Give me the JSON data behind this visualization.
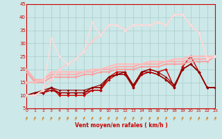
{
  "xlabel": "Vent moyen/en rafales ( km/h )",
  "xlim": [
    0,
    23
  ],
  "ylim": [
    5,
    45
  ],
  "yticks": [
    5,
    10,
    15,
    20,
    25,
    30,
    35,
    40,
    45
  ],
  "xticks": [
    0,
    1,
    2,
    3,
    4,
    5,
    6,
    7,
    8,
    9,
    10,
    11,
    12,
    13,
    14,
    15,
    16,
    17,
    18,
    19,
    20,
    21,
    22,
    23
  ],
  "bg_color": "#cce8e8",
  "grid_color": "#aacccc",
  "series": [
    {
      "x": [
        0,
        1,
        2,
        3,
        4,
        5,
        6,
        7,
        8,
        9,
        10,
        11,
        12,
        13,
        14,
        15,
        16,
        17,
        18,
        19,
        20,
        21,
        22,
        23
      ],
      "y": [
        10,
        11,
        11,
        13,
        10,
        10,
        10,
        10,
        12,
        12,
        17,
        19,
        19,
        13,
        19,
        20,
        19,
        20,
        13,
        21,
        25,
        19,
        13,
        13
      ],
      "color": "#cc0000",
      "lw": 1.0,
      "marker": "D",
      "ms": 2.0
    },
    {
      "x": [
        0,
        1,
        2,
        3,
        4,
        5,
        6,
        7,
        8,
        9,
        10,
        11,
        12,
        13,
        14,
        15,
        16,
        17,
        18,
        19,
        20,
        21,
        22,
        23
      ],
      "y": [
        10,
        11,
        11,
        12,
        11,
        11,
        11,
        11,
        12,
        12,
        16,
        18,
        18,
        14,
        18,
        19,
        18,
        16,
        14,
        20,
        22,
        19,
        13,
        13
      ],
      "color": "#bb0000",
      "lw": 0.9,
      "marker": "D",
      "ms": 1.8
    },
    {
      "x": [
        0,
        1,
        2,
        3,
        4,
        5,
        6,
        7,
        8,
        9,
        10,
        11,
        12,
        13,
        14,
        15,
        16,
        17,
        18,
        19,
        20,
        21,
        22,
        23
      ],
      "y": [
        10,
        11,
        11,
        12,
        11,
        11,
        11,
        11,
        13,
        13,
        17,
        18,
        18,
        13,
        18,
        19,
        18,
        16,
        13,
        20,
        22,
        19,
        13,
        13
      ],
      "color": "#aa0000",
      "lw": 0.9,
      "marker": "D",
      "ms": 1.8
    },
    {
      "x": [
        0,
        1,
        2,
        3,
        4,
        5,
        6,
        7,
        8,
        9,
        10,
        11,
        12,
        13,
        14,
        15,
        16,
        17,
        18,
        19,
        20,
        21,
        22,
        23
      ],
      "y": [
        10,
        11,
        11,
        13,
        11,
        11,
        11,
        11,
        13,
        13,
        17,
        18,
        19,
        13,
        19,
        19,
        18,
        16,
        13,
        20,
        22,
        19,
        13,
        13
      ],
      "color": "#990000",
      "lw": 0.8,
      "marker": "D",
      "ms": 1.5
    },
    {
      "x": [
        0,
        1,
        2,
        3,
        4,
        5,
        6,
        7,
        8,
        9,
        10,
        11,
        12,
        13,
        14,
        15,
        16,
        17,
        18,
        19,
        20,
        21,
        22,
        23
      ],
      "y": [
        10,
        11,
        12,
        13,
        12,
        12,
        12,
        12,
        13,
        14,
        17,
        18,
        19,
        14,
        19,
        20,
        19,
        17,
        14,
        20,
        22,
        19,
        13,
        13
      ],
      "color": "#880000",
      "lw": 0.8,
      "marker": "D",
      "ms": 1.5
    },
    {
      "x": [
        0,
        1,
        2,
        3,
        4,
        5,
        6,
        7,
        8,
        9,
        10,
        11,
        12,
        13,
        14,
        15,
        16,
        17,
        18,
        19,
        20,
        21,
        22,
        23
      ],
      "y": [
        19,
        15,
        15,
        17,
        17,
        17,
        17,
        18,
        18,
        19,
        19,
        20,
        20,
        20,
        21,
        21,
        21,
        22,
        22,
        22,
        23,
        23,
        23,
        25
      ],
      "color": "#ff9999",
      "lw": 1.2,
      "marker": "D",
      "ms": 1.5
    },
    {
      "x": [
        0,
        1,
        2,
        3,
        4,
        5,
        6,
        7,
        8,
        9,
        10,
        11,
        12,
        13,
        14,
        15,
        16,
        17,
        18,
        19,
        20,
        21,
        22,
        23
      ],
      "y": [
        20,
        16,
        16,
        18,
        18,
        18,
        18,
        19,
        19,
        20,
        20,
        21,
        21,
        21,
        22,
        22,
        22,
        23,
        23,
        23,
        24,
        24,
        24,
        25
      ],
      "color": "#ffaaaa",
      "lw": 1.3,
      "marker": "D",
      "ms": 1.5
    },
    {
      "x": [
        0,
        1,
        2,
        3,
        4,
        5,
        6,
        7,
        8,
        9,
        10,
        11,
        12,
        13,
        14,
        15,
        16,
        17,
        18,
        19,
        20,
        21,
        22,
        23
      ],
      "y": [
        15,
        15,
        16,
        19,
        19,
        19,
        19,
        19,
        20,
        20,
        21,
        22,
        22,
        22,
        22,
        23,
        23,
        23,
        24,
        24,
        25,
        25,
        25,
        25
      ],
      "color": "#ffbbbb",
      "lw": 1.5,
      "marker": "D",
      "ms": 1.5
    },
    {
      "x": [
        0,
        1,
        2,
        3,
        4,
        5,
        6,
        7,
        8,
        9,
        10,
        11,
        12,
        13,
        14,
        15,
        16,
        17,
        18,
        19,
        20,
        21,
        22,
        23
      ],
      "y": [
        10,
        10,
        12,
        16,
        20,
        22,
        24,
        27,
        31,
        33,
        37,
        37,
        35,
        37,
        37,
        37,
        38,
        37,
        41,
        41,
        37,
        34,
        24,
        25
      ],
      "color": "#ffcccc",
      "lw": 1.2,
      "marker": "D",
      "ms": 2.0
    },
    {
      "x": [
        0,
        1,
        2,
        3,
        4,
        5,
        6,
        7,
        8,
        9,
        10,
        11,
        12,
        13,
        14,
        15,
        16,
        17,
        18,
        19,
        20,
        21,
        22,
        23
      ],
      "y": [
        10,
        10,
        12,
        32,
        25,
        22,
        24,
        27,
        38,
        33,
        37,
        37,
        35,
        37,
        37,
        37,
        38,
        37,
        41,
        41,
        37,
        34,
        24,
        25
      ],
      "color": "#ffdddd",
      "lw": 1.0,
      "marker": "D",
      "ms": 1.8
    }
  ],
  "tick_color": "#cc0000",
  "label_color": "#cc0000",
  "arrow_color": "#cc8833"
}
